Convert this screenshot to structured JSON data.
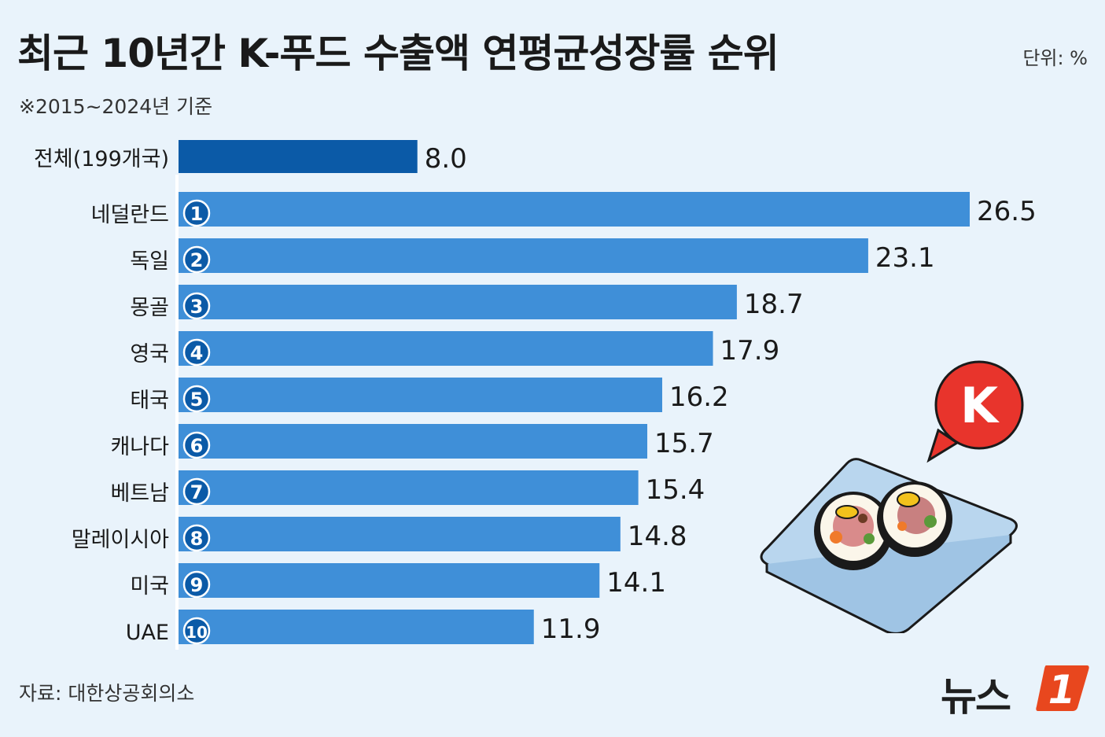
{
  "title": "최근 10년간 K-푸드 수출액 연평균성장률 순위",
  "unit": "단위: %",
  "subtitle": "※2015~2024년 기준",
  "source": "자료: 대한상공회의소",
  "logo": {
    "text": "뉴스",
    "mark": "1"
  },
  "illustration": {
    "badge_letter": "K"
  },
  "colors": {
    "total_bar": "#0b5aa7",
    "country_bar": "#3f8fd8",
    "background": "#e9f3fb",
    "rank_badge": "#0b5aa7",
    "logo_accent": "#e8471e"
  },
  "chart_data": {
    "type": "bar",
    "orientation": "horizontal",
    "title": "최근 10년간 K-푸드 수출액 연평균성장률 순위",
    "unit": "단위: %",
    "total": {
      "label": "전체(199개국)",
      "value": 8.0,
      "value_label": "8.0"
    },
    "categories": [
      "네덜란드",
      "독일",
      "몽골",
      "영국",
      "태국",
      "캐나다",
      "베트남",
      "말레이시아",
      "미국",
      "UAE"
    ],
    "ranks": [
      "1",
      "2",
      "3",
      "4",
      "5",
      "6",
      "7",
      "8",
      "9",
      "10"
    ],
    "values": [
      26.5,
      23.1,
      18.7,
      17.9,
      16.2,
      15.7,
      15.4,
      14.8,
      14.1,
      11.9
    ],
    "value_labels": [
      "26.5",
      "23.1",
      "18.7",
      "17.9",
      "16.2",
      "15.7",
      "15.4",
      "14.8",
      "14.1",
      "11.9"
    ],
    "xlim": [
      0,
      26.5
    ],
    "grid": false,
    "legend": "none"
  }
}
